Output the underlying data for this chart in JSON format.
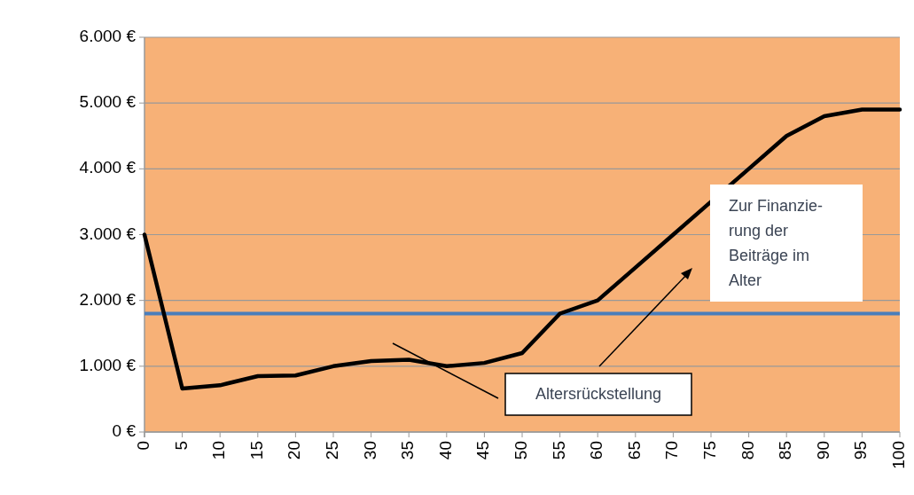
{
  "chart_data": {
    "type": "line",
    "x": [
      0,
      5,
      10,
      15,
      20,
      25,
      30,
      35,
      40,
      45,
      50,
      55,
      60,
      65,
      70,
      75,
      80,
      85,
      90,
      95,
      100
    ],
    "series": [
      {
        "color": "#000000",
        "values": [
          3000,
          660,
          710,
          850,
          860,
          1000,
          1080,
          1100,
          1000,
          1050,
          1200,
          1800,
          2000,
          2500,
          3000,
          3500,
          4000,
          4500,
          4800,
          4900,
          4900
        ]
      }
    ],
    "xlim": [
      0,
      100
    ],
    "xticks": [
      0,
      5,
      10,
      15,
      20,
      25,
      30,
      35,
      40,
      45,
      50,
      55,
      60,
      65,
      70,
      75,
      80,
      85,
      90,
      95,
      100
    ],
    "ylim": [
      0,
      6000
    ],
    "yticks": [
      {
        "value": 0,
        "label": "0 €"
      },
      {
        "value": 1000,
        "label": "1.000 €"
      },
      {
        "value": 2000,
        "label": "2.000 €"
      },
      {
        "value": 3000,
        "label": "3.000 €"
      },
      {
        "value": 4000,
        "label": "4.000 €"
      },
      {
        "value": 5000,
        "label": "5.000 €"
      },
      {
        "value": 6000,
        "label": "6.000 €"
      }
    ],
    "grid": "y",
    "marker": "none",
    "line_style": "solid",
    "ref_lines": [
      {
        "axis": "y",
        "value": 1800,
        "color": "#4a7ebb"
      }
    ],
    "annotations": [
      "Zur Finanzie-\nrung der\nBeiträge im\nAlter",
      "Altersrückstellung"
    ]
  }
}
